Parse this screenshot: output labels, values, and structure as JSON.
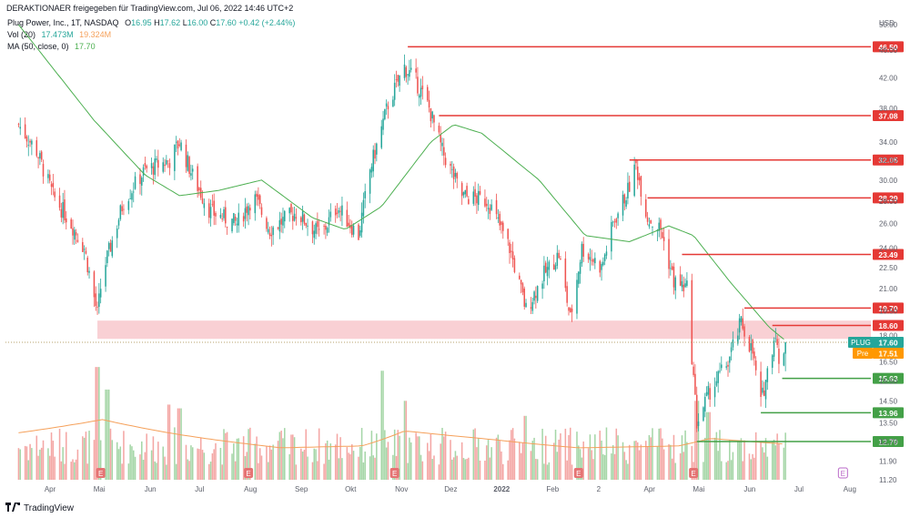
{
  "header": {
    "shared_by": "DERAKTIONAER freigegeben für TradingView.com, Jul 06, 2022 14:46 UTC+2"
  },
  "legend": {
    "symbol_line": {
      "name": "Plug Power, Inc., 1T, NASDAQ",
      "ohlc": [
        {
          "k": "O",
          "v": "16.95"
        },
        {
          "k": "H",
          "v": "17.62"
        },
        {
          "k": "L",
          "v": "16.00"
        },
        {
          "k": "C",
          "v": "17.60"
        }
      ],
      "change": "+0.42 (+2.44%)"
    },
    "volume_line": {
      "name": "Vol (20)",
      "v1": "17.473M",
      "v2": "19.324M"
    },
    "ma_line": {
      "name": "MA (50, close, 0)",
      "v": "17.70"
    }
  },
  "footer": {
    "brand": "TradingView"
  },
  "colors": {
    "up": "#26a69a",
    "down": "#ef5350",
    "ma": "#4caf50",
    "vol_ma": "#f5a05a",
    "resistance": "#e53935",
    "support": "#43a047",
    "zone": "#f8c8cc",
    "plug_badge": "#26a69a",
    "pre_badge": "#ff9800",
    "earnings": "#e57373",
    "earnings_upcoming": "#ba68c8"
  },
  "chart_data": {
    "type": "candlestick",
    "title": "Plug Power, Inc., 1T, NASDAQ",
    "currency": "USD",
    "y_scale": "log",
    "ylim": [
      11.2,
      52
    ],
    "y_ticks": [
      "11.20",
      "11.90",
      "12.70",
      "13.50",
      "14.50",
      "15.50",
      "16.50",
      "18.00",
      "19.50",
      "21.00",
      "22.50",
      "24.00",
      "26.00",
      "28.00",
      "30.00",
      "32.00",
      "34.00",
      "38.00",
      "42.00",
      "46.00",
      "50.00"
    ],
    "x_ticks": [
      "Apr",
      "Mai",
      "Jun",
      "Jul",
      "Aug",
      "Sep",
      "Okt",
      "Nov",
      "Dez",
      "2022",
      "Feb",
      "2",
      "Apr",
      "Mai",
      "Jun",
      "Jul",
      "Aug"
    ],
    "close_path": [
      {
        "d": "2021-03-25",
        "c": 36.0
      },
      {
        "d": "2021-04-05",
        "c": 33.0
      },
      {
        "d": "2021-04-15",
        "c": 28.5
      },
      {
        "d": "2021-04-26",
        "c": 26.0
      },
      {
        "d": "2021-05-04",
        "c": 24.0
      },
      {
        "d": "2021-05-12",
        "c": 19.3
      },
      {
        "d": "2021-05-15",
        "c": 22.0
      },
      {
        "d": "2021-05-28",
        "c": 28.0
      },
      {
        "d": "2021-06-10",
        "c": 31.0
      },
      {
        "d": "2021-06-25",
        "c": 32.0
      },
      {
        "d": "2021-07-01",
        "c": 34.0
      },
      {
        "d": "2021-07-10",
        "c": 30.0
      },
      {
        "d": "2021-07-20",
        "c": 27.0
      },
      {
        "d": "2021-08-05",
        "c": 26.0
      },
      {
        "d": "2021-08-15",
        "c": 28.5
      },
      {
        "d": "2021-08-25",
        "c": 25.5
      },
      {
        "d": "2021-09-10",
        "c": 27.0
      },
      {
        "d": "2021-09-25",
        "c": 25.0
      },
      {
        "d": "2021-10-05",
        "c": 27.5
      },
      {
        "d": "2021-10-18",
        "c": 25.0
      },
      {
        "d": "2021-10-25",
        "c": 31.0
      },
      {
        "d": "2021-11-05",
        "c": 38.5
      },
      {
        "d": "2021-11-15",
        "c": 43.5
      },
      {
        "d": "2021-11-22",
        "c": 41.5
      },
      {
        "d": "2021-11-30",
        "c": 38.0
      },
      {
        "d": "2021-12-08",
        "c": 33.0
      },
      {
        "d": "2021-12-20",
        "c": 28.5
      },
      {
        "d": "2022-01-05",
        "c": 28.0
      },
      {
        "d": "2022-01-18",
        "c": 24.0
      },
      {
        "d": "2022-01-28",
        "c": 19.6
      },
      {
        "d": "2022-02-08",
        "c": 22.0
      },
      {
        "d": "2022-02-17",
        "c": 23.5
      },
      {
        "d": "2022-02-24",
        "c": 19.0
      },
      {
        "d": "2022-03-03",
        "c": 24.0
      },
      {
        "d": "2022-03-15",
        "c": 22.5
      },
      {
        "d": "2022-03-22",
        "c": 26.0
      },
      {
        "d": "2022-03-31",
        "c": 29.0
      },
      {
        "d": "2022-04-05",
        "c": 31.5
      },
      {
        "d": "2022-04-12",
        "c": 26.5
      },
      {
        "d": "2022-04-20",
        "c": 25.5
      },
      {
        "d": "2022-04-28",
        "c": 21.5
      },
      {
        "d": "2022-05-06",
        "c": 21.0
      },
      {
        "d": "2022-05-12",
        "c": 13.5
      },
      {
        "d": "2022-05-20",
        "c": 15.0
      },
      {
        "d": "2022-05-31",
        "c": 16.5
      },
      {
        "d": "2022-06-08",
        "c": 18.8
      },
      {
        "d": "2022-06-15",
        "c": 17.0
      },
      {
        "d": "2022-06-20",
        "c": 14.4
      },
      {
        "d": "2022-06-24",
        "c": 16.0
      },
      {
        "d": "2022-06-29",
        "c": 18.3
      },
      {
        "d": "2022-07-01",
        "c": 16.2
      },
      {
        "d": "2022-07-05",
        "c": 17.6
      }
    ],
    "ma_path": [
      {
        "d": "2021-03-25",
        "v": 50.0
      },
      {
        "d": "2021-05-10",
        "v": 36.5
      },
      {
        "d": "2021-06-10",
        "v": 30.5
      },
      {
        "d": "2021-07-01",
        "v": 28.5
      },
      {
        "d": "2021-07-25",
        "v": 29.0
      },
      {
        "d": "2021-08-20",
        "v": 30.0
      },
      {
        "d": "2021-09-20",
        "v": 26.5
      },
      {
        "d": "2021-10-10",
        "v": 25.5
      },
      {
        "d": "2021-11-01",
        "v": 27.5
      },
      {
        "d": "2021-12-01",
        "v": 34.0
      },
      {
        "d": "2021-12-15",
        "v": 36.0
      },
      {
        "d": "2022-01-01",
        "v": 35.0
      },
      {
        "d": "2022-02-05",
        "v": 30.0
      },
      {
        "d": "2022-03-05",
        "v": 25.0
      },
      {
        "d": "2022-04-01",
        "v": 24.5
      },
      {
        "d": "2022-04-25",
        "v": 25.8
      },
      {
        "d": "2022-05-10",
        "v": 25.0
      },
      {
        "d": "2022-06-01",
        "v": 21.5
      },
      {
        "d": "2022-06-25",
        "v": 18.5
      },
      {
        "d": "2022-07-05",
        "v": 17.7
      }
    ],
    "volume_ma_path": [
      {
        "d": "2021-03-25",
        "v": 25
      },
      {
        "d": "2021-05-15",
        "v": 32
      },
      {
        "d": "2021-07-01",
        "v": 24
      },
      {
        "d": "2021-09-01",
        "v": 17
      },
      {
        "d": "2021-10-20",
        "v": 18
      },
      {
        "d": "2021-11-15",
        "v": 26
      },
      {
        "d": "2022-01-01",
        "v": 22
      },
      {
        "d": "2022-03-01",
        "v": 17
      },
      {
        "d": "2022-05-01",
        "v": 18
      },
      {
        "d": "2022-05-20",
        "v": 22
      },
      {
        "d": "2022-07-05",
        "v": 19
      }
    ],
    "volume_spikes": [
      {
        "d": "2021-05-12",
        "v": 60
      },
      {
        "d": "2021-05-18",
        "v": 48
      },
      {
        "d": "2021-06-25",
        "v": 40
      },
      {
        "d": "2021-07-01",
        "v": 38
      },
      {
        "d": "2021-11-01",
        "v": 58
      },
      {
        "d": "2021-11-15",
        "v": 42
      },
      {
        "d": "2022-01-28",
        "v": 34
      },
      {
        "d": "2022-05-12",
        "v": 42
      },
      {
        "d": "2022-05-19",
        "v": 36
      }
    ],
    "levels": [
      {
        "type": "resistance",
        "value": 46.5,
        "label": "46.50",
        "from": "2021-11-17"
      },
      {
        "type": "resistance",
        "value": 37.08,
        "label": "37.08",
        "from": "2021-12-06"
      },
      {
        "type": "resistance",
        "value": 32.05,
        "label": "32.05",
        "from": "2022-04-01"
      },
      {
        "type": "resistance",
        "value": 28.29,
        "label": "28.29",
        "from": "2022-04-12"
      },
      {
        "type": "resistance",
        "value": 23.49,
        "label": "23.49",
        "from": "2022-05-03"
      },
      {
        "type": "resistance",
        "value": 19.7,
        "label": "19.70",
        "from": "2022-06-10"
      },
      {
        "type": "resistance",
        "value": 18.6,
        "label": "18.60",
        "from": "2022-06-27"
      },
      {
        "type": "support",
        "value": 15.63,
        "label": "15.63",
        "from": "2022-07-03"
      },
      {
        "type": "support",
        "value": 13.96,
        "label": "13.96",
        "from": "2022-06-20"
      },
      {
        "type": "support",
        "value": 12.7,
        "label": "12.70",
        "from": "2022-05-12"
      }
    ],
    "zone": {
      "from": "2021-05-12",
      "low": 17.8,
      "high": 18.9
    },
    "last_price": {
      "label": "PLUG",
      "value": "17.60"
    },
    "premarket": {
      "label": "Pre",
      "value": "17.51"
    },
    "earnings_dates": [
      "2021-05-14",
      "2021-08-12",
      "2021-11-09",
      "2022-03-01",
      "2022-05-10"
    ],
    "upcoming_earnings": {
      "date": "2022-08-09",
      "label": "E"
    },
    "earnings_label": "E"
  }
}
